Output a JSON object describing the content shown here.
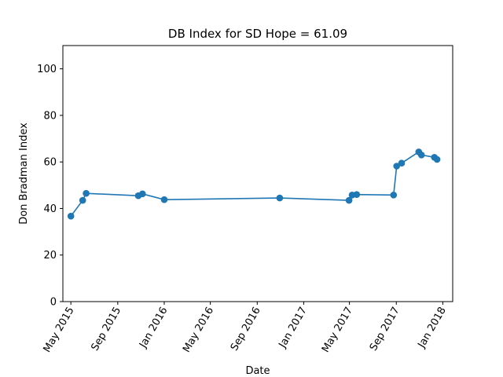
{
  "chart_data": {
    "type": "line",
    "title": "DB Index for SD Hope = 61.09",
    "xlabel": "Date",
    "ylabel": "Don Bradman Index",
    "ylim": [
      0,
      110
    ],
    "yticks": [
      0,
      20,
      40,
      60,
      80,
      100
    ],
    "xlim": [
      "2015-04-10",
      "2018-01-27"
    ],
    "xticks": [
      {
        "date": "2015-05-01",
        "label": "May 2015"
      },
      {
        "date": "2015-09-01",
        "label": "Sep 2015"
      },
      {
        "date": "2016-01-01",
        "label": "Jan 2016"
      },
      {
        "date": "2016-05-01",
        "label": "May 2016"
      },
      {
        "date": "2016-09-01",
        "label": "Sep 2016"
      },
      {
        "date": "2017-01-01",
        "label": "Jan 2017"
      },
      {
        "date": "2017-05-01",
        "label": "May 2017"
      },
      {
        "date": "2017-09-01",
        "label": "Sep 2017"
      },
      {
        "date": "2018-01-01",
        "label": "Jan 2018"
      }
    ],
    "grid": false,
    "color": "#1f77b4",
    "series": [
      {
        "points": [
          {
            "x": "2015-05-01",
            "y": 36.7
          },
          {
            "x": "2015-06-01",
            "y": 43.5
          },
          {
            "x": "2015-06-10",
            "y": 46.5
          },
          {
            "x": "2015-10-25",
            "y": 45.5
          },
          {
            "x": "2015-11-05",
            "y": 46.3
          },
          {
            "x": "2016-01-01",
            "y": 43.8
          },
          {
            "x": "2016-10-30",
            "y": 44.5
          },
          {
            "x": "2017-04-30",
            "y": 43.5
          },
          {
            "x": "2017-05-08",
            "y": 45.8
          },
          {
            "x": "2017-05-20",
            "y": 46.0
          },
          {
            "x": "2017-08-25",
            "y": 45.8
          },
          {
            "x": "2017-09-02",
            "y": 58.2
          },
          {
            "x": "2017-09-15",
            "y": 59.5
          },
          {
            "x": "2017-10-30",
            "y": 64.3
          },
          {
            "x": "2017-11-06",
            "y": 63.0
          },
          {
            "x": "2017-12-10",
            "y": 62.0
          },
          {
            "x": "2017-12-17",
            "y": 61.09
          }
        ]
      }
    ]
  }
}
